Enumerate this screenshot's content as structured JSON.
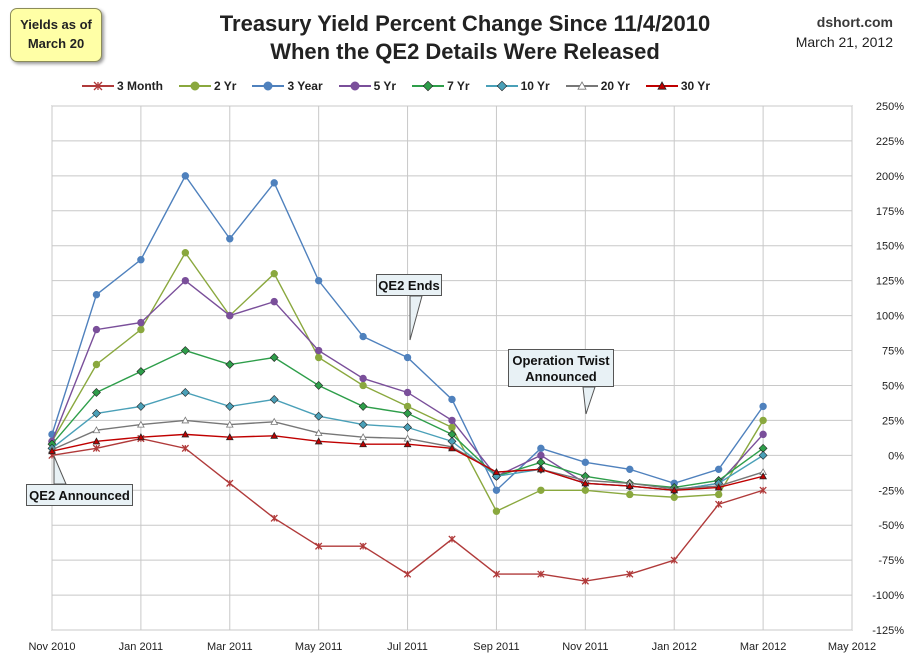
{
  "badge": {
    "line1": "Yields as of",
    "line2": "March 20"
  },
  "source": {
    "site": "dshort.com",
    "date": "March 21, 2012"
  },
  "chart_data": {
    "type": "line",
    "title": "Treasury Yield Percent Change Since 11/4/2010",
    "subtitle": "When the QE2 Details Were Released",
    "x_ticks": [
      "Nov 2010",
      "Jan 2011",
      "Mar 2011",
      "May 2011",
      "Jul 2011",
      "Sep 2011",
      "Nov 2011",
      "Jan 2012",
      "Mar 2012",
      "May 2012"
    ],
    "y_ticks": [
      "250%",
      "225%",
      "200%",
      "175%",
      "150%",
      "125%",
      "100%",
      "75%",
      "50%",
      "25%",
      "0%",
      "-25%",
      "-50%",
      "-75%",
      "-100%",
      "-125%"
    ],
    "ylim": [
      -125,
      250
    ],
    "grid": true,
    "legend_position": "top",
    "x": [
      "Nov 2010",
      "Dec 2010",
      "Jan 2011",
      "Feb 2011",
      "Mar 2011",
      "Apr 2011",
      "May 2011",
      "Jun 2011",
      "Jul 2011",
      "Aug 2011",
      "Sep 2011",
      "Oct 2011",
      "Nov 2011",
      "Dec 2011",
      "Jan 2012",
      "Feb 2012",
      "Mar 2012"
    ],
    "series": [
      {
        "name": "3 Month",
        "color": "#b03a3a",
        "marker": "star",
        "values": [
          0,
          5,
          12,
          5,
          -20,
          -45,
          -65,
          -65,
          -85,
          -60,
          -85,
          -85,
          -90,
          -85,
          -75,
          -35,
          -25
        ]
      },
      {
        "name": "2 Yr",
        "color": "#8aa83e",
        "marker": "circle",
        "values": [
          10,
          65,
          90,
          145,
          100,
          130,
          70,
          50,
          35,
          20,
          -40,
          -25,
          -25,
          -28,
          -30,
          -28,
          25
        ]
      },
      {
        "name": "3 Year",
        "color": "#4f81bd",
        "marker": "circle",
        "values": [
          15,
          115,
          140,
          200,
          155,
          195,
          125,
          85,
          70,
          40,
          -25,
          5,
          -5,
          -10,
          -20,
          -10,
          35
        ]
      },
      {
        "name": "5 Yr",
        "color": "#7a4f9a",
        "marker": "circle",
        "values": [
          10,
          90,
          95,
          125,
          100,
          110,
          75,
          55,
          45,
          25,
          -15,
          0,
          -20,
          -22,
          -25,
          -20,
          15
        ]
      },
      {
        "name": "7 Yr",
        "color": "#2e9e4a",
        "marker": "diamond",
        "values": [
          8,
          45,
          60,
          75,
          65,
          70,
          50,
          35,
          30,
          15,
          -15,
          -5,
          -15,
          -20,
          -23,
          -18,
          5
        ]
      },
      {
        "name": "10 Yr",
        "color": "#4aa0b8",
        "marker": "diamond",
        "values": [
          5,
          30,
          35,
          45,
          35,
          40,
          28,
          22,
          20,
          10,
          -15,
          -10,
          -20,
          -22,
          -25,
          -20,
          0
        ]
      },
      {
        "name": "20 Yr",
        "color": "#777777",
        "marker": "triangle-open",
        "values": [
          4,
          18,
          22,
          25,
          22,
          24,
          16,
          13,
          12,
          6,
          -12,
          -10,
          -18,
          -20,
          -24,
          -22,
          -12
        ]
      },
      {
        "name": "30 Yr",
        "color": "#c00000",
        "marker": "triangle",
        "values": [
          3,
          10,
          13,
          15,
          13,
          14,
          10,
          8,
          8,
          5,
          -12,
          -10,
          -20,
          -22,
          -25,
          -23,
          -15
        ]
      }
    ],
    "annotations": [
      {
        "text": "QE2 Announced",
        "x": "Nov 2010",
        "y": 0
      },
      {
        "text": "QE2 Ends",
        "x": "Jul 2011",
        "y": 80
      },
      {
        "text": "Operation Twist Announced",
        "x": "Oct 2011",
        "y": 30
      }
    ]
  }
}
